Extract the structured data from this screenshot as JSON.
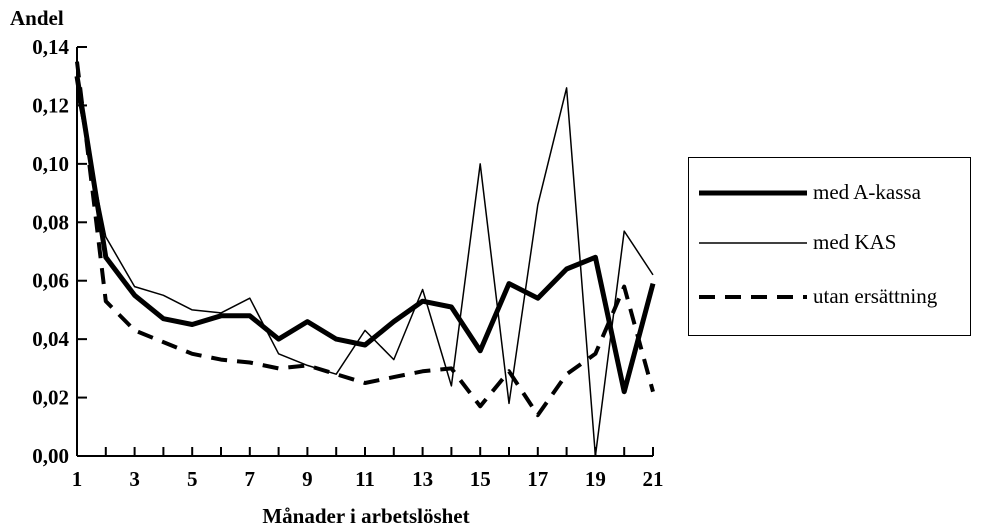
{
  "chart_data": {
    "type": "line",
    "ylabel": "Andel",
    "xlabel": "Månader i arbetslöshet",
    "xlim": [
      1,
      21
    ],
    "ylim": [
      0,
      0.14
    ],
    "x": [
      1,
      2,
      3,
      4,
      5,
      6,
      7,
      8,
      9,
      10,
      11,
      12,
      13,
      14,
      15,
      16,
      17,
      18,
      19,
      20,
      21
    ],
    "x_tick_labels": [
      "1",
      "3",
      "5",
      "7",
      "9",
      "11",
      "13",
      "15",
      "17",
      "19",
      "21"
    ],
    "y_tick_labels": [
      "0,00",
      "0,02",
      "0,04",
      "0,06",
      "0,08",
      "0,10",
      "0,12",
      "0,14"
    ],
    "y_ticks": [
      0,
      0.02,
      0.04,
      0.06,
      0.08,
      0.1,
      0.12,
      0.14
    ],
    "series": [
      {
        "name": "med A-kassa",
        "style": "thick",
        "values": [
          0.13,
          0.068,
          0.055,
          0.047,
          0.045,
          0.048,
          0.048,
          0.04,
          0.046,
          0.04,
          0.038,
          0.046,
          0.053,
          0.051,
          0.036,
          0.059,
          0.054,
          0.064,
          0.068,
          0.022,
          0.059
        ]
      },
      {
        "name": "med KAS",
        "style": "thin",
        "values": [
          0.124,
          0.075,
          0.058,
          0.055,
          0.05,
          0.049,
          0.054,
          0.035,
          0.031,
          0.028,
          0.043,
          0.033,
          0.057,
          0.024,
          0.1,
          0.018,
          0.086,
          0.126,
          0.0,
          0.077,
          0.062
        ]
      },
      {
        "name": "utan ersättning",
        "style": "dashed",
        "values": [
          0.135,
          0.053,
          0.043,
          0.039,
          0.035,
          0.033,
          0.032,
          0.03,
          0.031,
          0.028,
          0.025,
          0.027,
          0.029,
          0.03,
          0.017,
          0.029,
          0.014,
          0.028,
          0.035,
          0.058,
          0.022
        ]
      }
    ],
    "legend_position": "right",
    "grid": false,
    "colors": {
      "line": "#000000",
      "background": "#ffffff"
    }
  }
}
